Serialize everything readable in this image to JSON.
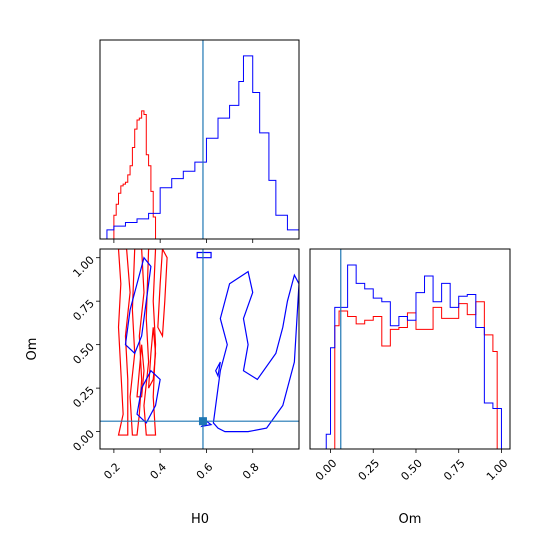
{
  "chart_data": {
    "type": "corner",
    "parameters": [
      "H0",
      "Om"
    ],
    "colors": {
      "series_a": "#ff0000",
      "series_b": "#0000ff",
      "truth": "#1f77b4"
    },
    "truth": {
      "H0": 0.585,
      "Om": 0.06
    },
    "axes": {
      "H0": {
        "label": "H0",
        "range": [
          0.14,
          1.0
        ],
        "ticks": [
          "0.2",
          "0.4",
          "0.6",
          "0.8"
        ],
        "tick_values": [
          0.2,
          0.4,
          0.6,
          0.8
        ]
      },
      "Om": {
        "label": "Om",
        "range": [
          -0.1,
          1.05
        ],
        "ticks": [
          "0.00",
          "0.25",
          "0.50",
          "0.75",
          "1.00"
        ],
        "tick_values": [
          0.0,
          0.25,
          0.5,
          0.75,
          1.0
        ]
      }
    },
    "hist_H0": {
      "series_a": {
        "edges": [
          0.2,
          0.21,
          0.22,
          0.23,
          0.24,
          0.25,
          0.26,
          0.27,
          0.28,
          0.29,
          0.3,
          0.31,
          0.32,
          0.33,
          0.34,
          0.35,
          0.36,
          0.37,
          0.38,
          0.39
        ],
        "counts": [
          0.13,
          0.19,
          0.25,
          0.29,
          0.3,
          0.31,
          0.35,
          0.4,
          0.5,
          0.6,
          0.65,
          0.66,
          0.7,
          0.68,
          0.46,
          0.4,
          0.26,
          0.12,
          0.0
        ]
      },
      "series_b": {
        "edges": [
          0.14,
          0.17,
          0.2,
          0.25,
          0.3,
          0.35,
          0.4,
          0.45,
          0.5,
          0.55,
          0.6,
          0.65,
          0.7,
          0.74,
          0.76,
          0.8,
          0.83,
          0.87,
          0.9,
          0.95,
          1.0
        ],
        "counts": [
          0.0,
          0.05,
          0.07,
          0.09,
          0.11,
          0.14,
          0.28,
          0.33,
          0.37,
          0.42,
          0.55,
          0.66,
          0.73,
          0.86,
          1.0,
          0.8,
          0.58,
          0.32,
          0.13,
          0.05
        ]
      }
    },
    "hist_Om": {
      "series_a": {
        "edges": [
          -0.05,
          -0.025,
          0.0,
          0.025,
          0.05,
          0.1,
          0.15,
          0.2,
          0.25,
          0.3,
          0.35,
          0.4,
          0.45,
          0.5,
          0.55,
          0.6,
          0.65,
          0.7,
          0.75,
          0.8,
          0.85,
          0.9,
          0.95,
          0.975,
          1.0,
          1.05
        ],
        "counts": [
          0.0,
          0.0,
          0.0,
          0.67,
          0.75,
          0.72,
          0.68,
          0.7,
          0.72,
          0.56,
          0.65,
          0.66,
          0.74,
          0.65,
          0.65,
          0.77,
          0.71,
          0.71,
          0.79,
          0.73,
          0.8,
          0.62,
          0.53,
          0.0,
          0.0
        ]
      },
      "series_b": {
        "edges": [
          -0.1,
          -0.05,
          -0.025,
          0.0,
          0.025,
          0.05,
          0.1,
          0.15,
          0.2,
          0.25,
          0.3,
          0.35,
          0.4,
          0.45,
          0.5,
          0.55,
          0.6,
          0.65,
          0.7,
          0.75,
          0.8,
          0.85,
          0.9,
          0.95,
          1.0,
          1.05
        ],
        "counts": [
          0.0,
          0.0,
          0.08,
          0.55,
          0.77,
          0.77,
          1.0,
          0.9,
          0.87,
          0.82,
          0.8,
          0.67,
          0.72,
          0.7,
          0.85,
          0.94,
          0.8,
          0.9,
          0.77,
          0.83,
          0.84,
          0.66,
          0.25,
          0.22,
          0.0
        ]
      }
    },
    "contours": {
      "series_a": [
        [
          [
            0.22,
            -0.02
          ],
          [
            0.24,
            0.1
          ],
          [
            0.23,
            0.35
          ],
          [
            0.22,
            0.6
          ],
          [
            0.23,
            0.85
          ],
          [
            0.22,
            1.05
          ],
          [
            0.255,
            1.05
          ],
          [
            0.27,
            0.8
          ],
          [
            0.25,
            0.55
          ],
          [
            0.26,
            0.3
          ],
          [
            0.26,
            0.1
          ],
          [
            0.26,
            -0.02
          ]
        ],
        [
          [
            0.28,
            -0.02
          ],
          [
            0.27,
            0.2
          ],
          [
            0.29,
            0.45
          ],
          [
            0.28,
            0.7
          ],
          [
            0.29,
            1.05
          ],
          [
            0.32,
            1.05
          ],
          [
            0.33,
            0.8
          ],
          [
            0.31,
            0.55
          ],
          [
            0.32,
            0.3
          ],
          [
            0.31,
            0.1
          ],
          [
            0.3,
            -0.02
          ]
        ],
        [
          [
            0.34,
            -0.02
          ],
          [
            0.33,
            0.15
          ],
          [
            0.35,
            0.4
          ],
          [
            0.34,
            0.65
          ],
          [
            0.35,
            1.05
          ],
          [
            0.38,
            1.05
          ],
          [
            0.37,
            0.75
          ],
          [
            0.38,
            0.5
          ],
          [
            0.37,
            0.2
          ],
          [
            0.38,
            -0.02
          ]
        ],
        [
          [
            0.39,
            0.6
          ],
          [
            0.4,
            0.85
          ],
          [
            0.41,
            1.05
          ],
          [
            0.43,
            1.0
          ],
          [
            0.42,
            0.75
          ],
          [
            0.41,
            0.55
          ]
        ],
        [
          [
            0.3,
            0.2
          ],
          [
            0.31,
            0.35
          ],
          [
            0.32,
            0.5
          ],
          [
            0.33,
            0.35
          ],
          [
            0.32,
            0.2
          ]
        ],
        [
          [
            0.35,
            0.25
          ],
          [
            0.36,
            0.45
          ],
          [
            0.37,
            0.6
          ],
          [
            0.38,
            0.45
          ],
          [
            0.37,
            0.3
          ]
        ]
      ],
      "series_b": [
        [
          [
            0.63,
            0.05
          ],
          [
            0.66,
            0.35
          ],
          [
            0.69,
            0.5
          ],
          [
            0.66,
            0.65
          ],
          [
            0.7,
            0.85
          ],
          [
            0.78,
            0.92
          ],
          [
            0.8,
            0.8
          ],
          [
            0.76,
            0.65
          ],
          [
            0.78,
            0.5
          ],
          [
            0.76,
            0.35
          ],
          [
            0.82,
            0.3
          ],
          [
            0.9,
            0.45
          ],
          [
            0.93,
            0.6
          ],
          [
            0.95,
            0.75
          ],
          [
            0.98,
            0.9
          ],
          [
            1.0,
            0.85
          ],
          [
            0.98,
            0.4
          ],
          [
            0.93,
            0.15
          ],
          [
            0.86,
            0.02
          ],
          [
            0.78,
            0.0
          ],
          [
            0.68,
            0.0
          ],
          [
            0.65,
            0.02
          ]
        ],
        [
          [
            0.25,
            0.5
          ],
          [
            0.27,
            0.7
          ],
          [
            0.3,
            0.85
          ],
          [
            0.33,
            1.0
          ],
          [
            0.36,
            0.95
          ],
          [
            0.34,
            0.75
          ],
          [
            0.32,
            0.55
          ],
          [
            0.29,
            0.45
          ]
        ],
        [
          [
            0.3,
            0.1
          ],
          [
            0.32,
            0.25
          ],
          [
            0.36,
            0.35
          ],
          [
            0.4,
            0.3
          ],
          [
            0.38,
            0.15
          ],
          [
            0.34,
            0.05
          ]
        ],
        [
          [
            0.58,
            0.03
          ],
          [
            0.6,
            0.06
          ],
          [
            0.62,
            0.04
          ]
        ],
        [
          [
            0.56,
            1.0
          ],
          [
            0.62,
            1.0
          ],
          [
            0.62,
            1.03
          ],
          [
            0.56,
            1.03
          ]
        ],
        [
          [
            0.64,
            0.35
          ],
          [
            0.66,
            0.4
          ],
          [
            0.65,
            0.32
          ]
        ]
      ]
    }
  }
}
